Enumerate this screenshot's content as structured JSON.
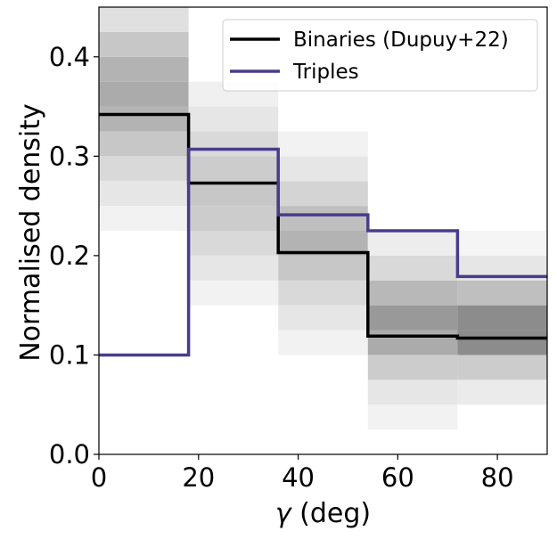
{
  "chart_data": {
    "type": "step-histogram",
    "title": "",
    "xlabel": "γ (deg)",
    "xlabel_symbol": "γ",
    "xlabel_unit": " (deg)",
    "ylabel": "Normalised density",
    "xlim": [
      0,
      90
    ],
    "ylim": [
      0,
      0.45
    ],
    "xticks": [
      0,
      20,
      40,
      60,
      80
    ],
    "xtick_labels": [
      "0",
      "20",
      "40",
      "60",
      "80"
    ],
    "yticks": [
      0.0,
      0.1,
      0.2,
      0.3,
      0.4
    ],
    "ytick_labels": [
      "0.0",
      "0.1",
      "0.2",
      "0.3",
      "0.4"
    ],
    "bin_edges": [
      0,
      18,
      36,
      54,
      72,
      90
    ],
    "series": [
      {
        "name": "Binaries (Dupuy+22)",
        "color": "#000000",
        "values": [
          0.342,
          0.273,
          0.203,
          0.119,
          0.117
        ]
      },
      {
        "name": "Triples",
        "color": "#483d8b",
        "values": [
          0.1,
          0.307,
          0.241,
          0.225,
          0.179
        ]
      }
    ],
    "background_density": {
      "cmap": "greys",
      "y_cell": 0.025,
      "columns": [
        {
          "x_start": 0,
          "x_end": 18,
          "cells": [
            [
              0.225,
              0.05
            ],
            [
              0.25,
              0.1
            ],
            [
              0.275,
              0.15
            ],
            [
              0.3,
              0.22
            ],
            [
              0.325,
              0.3
            ],
            [
              0.35,
              0.33
            ],
            [
              0.375,
              0.3
            ],
            [
              0.4,
              0.22
            ],
            [
              0.425,
              0.12
            ],
            [
              0.45,
              0.05
            ]
          ]
        },
        {
          "x_start": 18,
          "x_end": 36,
          "cells": [
            [
              0.15,
              0.05
            ],
            [
              0.175,
              0.1
            ],
            [
              0.2,
              0.15
            ],
            [
              0.225,
              0.2
            ],
            [
              0.25,
              0.22
            ],
            [
              0.275,
              0.2
            ],
            [
              0.3,
              0.15
            ],
            [
              0.325,
              0.1
            ],
            [
              0.35,
              0.06
            ]
          ]
        },
        {
          "x_start": 36,
          "x_end": 54,
          "cells": [
            [
              0.1,
              0.05
            ],
            [
              0.125,
              0.1
            ],
            [
              0.15,
              0.15
            ],
            [
              0.175,
              0.22
            ],
            [
              0.2,
              0.3
            ],
            [
              0.225,
              0.25
            ],
            [
              0.25,
              0.17
            ],
            [
              0.275,
              0.1
            ],
            [
              0.3,
              0.05
            ]
          ]
        },
        {
          "x_start": 54,
          "x_end": 72,
          "cells": [
            [
              0.025,
              0.05
            ],
            [
              0.05,
              0.1
            ],
            [
              0.075,
              0.2
            ],
            [
              0.1,
              0.33
            ],
            [
              0.125,
              0.4
            ],
            [
              0.15,
              0.28
            ],
            [
              0.175,
              0.15
            ],
            [
              0.2,
              0.07
            ]
          ]
        },
        {
          "x_start": 72,
          "x_end": 90,
          "cells": [
            [
              0.05,
              0.08
            ],
            [
              0.075,
              0.2
            ],
            [
              0.1,
              0.45
            ],
            [
              0.125,
              0.45
            ],
            [
              0.15,
              0.25
            ],
            [
              0.175,
              0.1
            ],
            [
              0.2,
              0.04
            ]
          ]
        }
      ]
    },
    "legend_location": "top-right"
  }
}
